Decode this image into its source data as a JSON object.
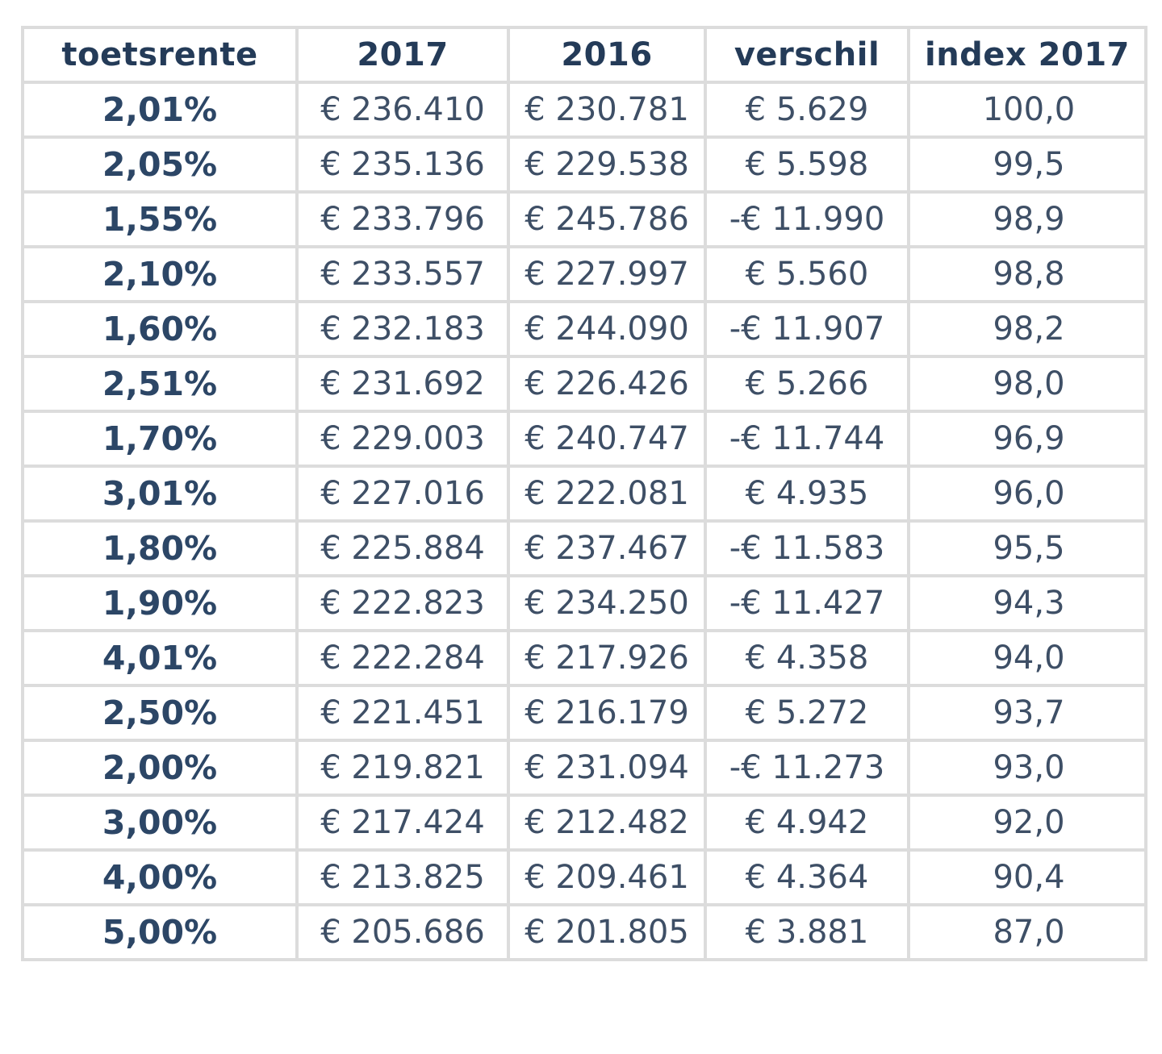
{
  "table": {
    "headers": [
      "toetsrente",
      "2017",
      "2016",
      "verschil",
      "index 2017"
    ],
    "rows": [
      [
        "2,01%",
        "€ 236.410",
        "€ 230.781",
        "€ 5.629",
        "100,0"
      ],
      [
        "2,05%",
        "€ 235.136",
        "€ 229.538",
        "€ 5.598",
        "99,5"
      ],
      [
        "1,55%",
        "€ 233.796",
        "€ 245.786",
        "-€ 11.990",
        "98,9"
      ],
      [
        "2,10%",
        "€ 233.557",
        "€ 227.997",
        "€ 5.560",
        "98,8"
      ],
      [
        "1,60%",
        "€ 232.183",
        "€ 244.090",
        "-€ 11.907",
        "98,2"
      ],
      [
        "2,51%",
        "€ 231.692",
        "€ 226.426",
        "€ 5.266",
        "98,0"
      ],
      [
        "1,70%",
        "€ 229.003",
        "€ 240.747",
        "-€ 11.744",
        "96,9"
      ],
      [
        "3,01%",
        "€ 227.016",
        "€ 222.081",
        "€ 4.935",
        "96,0"
      ],
      [
        "1,80%",
        "€ 225.884",
        "€ 237.467",
        "-€ 11.583",
        "95,5"
      ],
      [
        "1,90%",
        "€ 222.823",
        "€ 234.250",
        "-€ 11.427",
        "94,3"
      ],
      [
        "4,01%",
        "€ 222.284",
        "€ 217.926",
        "€ 4.358",
        "94,0"
      ],
      [
        "2,50%",
        "€ 221.451",
        "€ 216.179",
        "€ 5.272",
        "93,7"
      ],
      [
        "2,00%",
        "€ 219.821",
        "€ 231.094",
        "-€ 11.273",
        "93,0"
      ],
      [
        "3,00%",
        "€ 217.424",
        "€ 212.482",
        "€ 4.942",
        "92,0"
      ],
      [
        "4,00%",
        "€ 213.825",
        "€ 209.461",
        "€ 4.364",
        "90,4"
      ],
      [
        "5,00%",
        "€ 205.686",
        "€ 201.805",
        "€ 3.881",
        "87,0"
      ]
    ]
  }
}
